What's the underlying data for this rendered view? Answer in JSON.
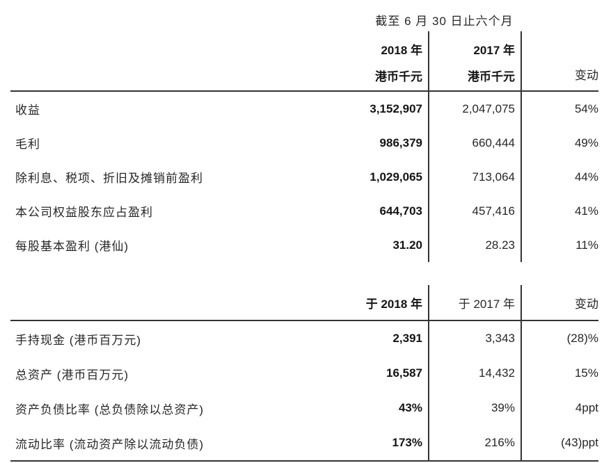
{
  "table": {
    "title": "截至 6 月 30 日止六个月",
    "section1": {
      "header": {
        "y2018": "2018 年",
        "y2018_unit": "港币千元",
        "y2017": "2017 年",
        "y2017_unit": "港币千元",
        "change": "变动"
      },
      "rows": [
        {
          "label": "收益",
          "v2018": "3,152,907",
          "v2017": "2,047,075",
          "change": "54%"
        },
        {
          "label": "毛利",
          "v2018": "986,379",
          "v2017": "660,444",
          "change": "49%"
        },
        {
          "label": "除利息、税项、折旧及摊销前盈利",
          "v2018": "1,029,065",
          "v2017": "713,064",
          "change": "44%"
        },
        {
          "label": "本公司权益股东应占盈利",
          "v2018": "644,703",
          "v2017": "457,416",
          "change": "41%"
        },
        {
          "label": "每股基本盈利 (港仙)",
          "v2018": "31.20",
          "v2017": "28.23",
          "change": "11%"
        }
      ]
    },
    "section2": {
      "header": {
        "y2018": "于 2018 年",
        "y2017": "于 2017 年",
        "change": "变动"
      },
      "rows": [
        {
          "label": "手持现金 (港币百万元)",
          "v2018": "2,391",
          "v2017": "3,343",
          "change": "(28)%"
        },
        {
          "label": "总资产 (港币百万元)",
          "v2018": "16,587",
          "v2017": "14,432",
          "change": "15%"
        },
        {
          "label": "资产负债比率 (总负债除以总资产)",
          "v2018": "43%",
          "v2017": "39%",
          "change": "4ppt"
        },
        {
          "label": "流动比率 (流动资产除以流动负债)",
          "v2018": "173%",
          "v2017": "216%",
          "change": "(43)ppt"
        }
      ]
    }
  },
  "colors": {
    "background": "#ffffff",
    "text": "#262626",
    "bold_text": "#141414",
    "rule_line": "#333333"
  }
}
